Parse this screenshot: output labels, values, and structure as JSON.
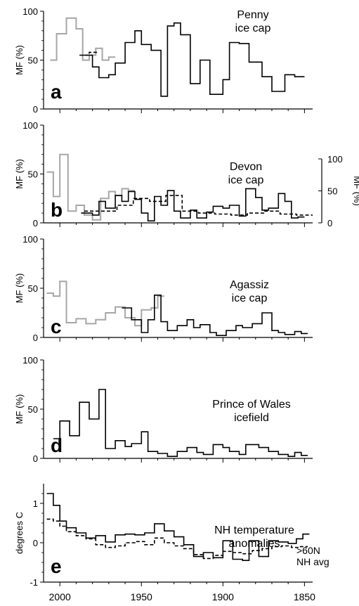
{
  "x_axis": {
    "ticks": [
      "2000",
      "1950",
      "1900",
      "1850"
    ]
  },
  "chart_data": [
    {
      "type": "line",
      "panel_letter": "a",
      "title": "Penny\nice cap",
      "ylabel": "MF (%)",
      "ylim": [
        0,
        100
      ],
      "yticks": [
        "0",
        "50",
        "100"
      ],
      "xlim": [
        2010,
        1845
      ],
      "series": [
        {
          "style": "gray-solid",
          "x": [
            2006,
            2002,
            1996,
            1990,
            1986,
            1982,
            1978,
            1974,
            1970
          ],
          "y": [
            50,
            77,
            93,
            82,
            50,
            55,
            62,
            50,
            53
          ]
        },
        {
          "style": "black-dashed",
          "x": [
            1988,
            1982
          ],
          "y": [
            55,
            58
          ]
        },
        {
          "style": "black-solid",
          "x": [
            1986,
            1980,
            1976,
            1970,
            1966,
            1960,
            1954,
            1950,
            1944,
            1938,
            1934,
            1930,
            1926,
            1920,
            1914,
            1908,
            1900,
            1896,
            1890,
            1884,
            1876,
            1870,
            1862,
            1856
          ],
          "y": [
            55,
            43,
            32,
            35,
            47,
            68,
            80,
            66,
            60,
            13,
            85,
            88,
            76,
            26,
            50,
            15,
            30,
            68,
            67,
            48,
            33,
            18,
            35,
            33
          ]
        }
      ]
    },
    {
      "type": "line",
      "panel_letter": "b",
      "title": "Devon\nice cap",
      "ylabel": "MF (%)",
      "ylim": [
        0,
        100
      ],
      "yticks": [
        "0",
        "50",
        "100"
      ],
      "y2label": "MF (%)",
      "y2ticks": [
        "0",
        "50",
        "100"
      ],
      "xlim": [
        2010,
        1845
      ],
      "series": [
        {
          "style": "gray-solid",
          "x": [
            2008,
            2004,
            2000,
            1995,
            1990,
            1985,
            1980,
            1975,
            1970,
            1966,
            1962,
            1958
          ],
          "y": [
            52,
            27,
            70,
            12,
            18,
            8,
            3,
            25,
            32,
            28,
            35,
            33
          ]
        },
        {
          "style": "black-dashed",
          "x": [
            1985,
            1975,
            1965,
            1955,
            1945,
            1935,
            1925,
            1915,
            1905,
            1895,
            1885,
            1875,
            1865,
            1855
          ],
          "y": [
            12,
            12,
            18,
            25,
            22,
            28,
            12,
            10,
            9,
            8,
            10,
            12,
            9,
            8
          ]
        },
        {
          "style": "black-solid",
          "x": [
            1987,
            1980,
            1976,
            1972,
            1966,
            1962,
            1958,
            1954,
            1950,
            1946,
            1942,
            1938,
            1934,
            1930,
            1926,
            1920,
            1916,
            1910,
            1906,
            1900,
            1896,
            1890,
            1886,
            1880,
            1876,
            1872,
            1866,
            1862,
            1858,
            1854
          ],
          "y": [
            10,
            8,
            22,
            15,
            28,
            22,
            32,
            24,
            10,
            2,
            27,
            18,
            33,
            12,
            5,
            13,
            5,
            11,
            17,
            15,
            18,
            7,
            35,
            26,
            13,
            15,
            30,
            22,
            5,
            6
          ]
        }
      ]
    },
    {
      "type": "line",
      "panel_letter": "c",
      "title": "Agassiz\nice cap",
      "ylabel": "MF (%)",
      "ylim": [
        0,
        100
      ],
      "yticks": [
        "0",
        "50",
        "100"
      ],
      "xlim": [
        2010,
        1845
      ],
      "series": [
        {
          "style": "gray-solid",
          "x": [
            2008,
            2004,
            2000,
            1996,
            1990,
            1984,
            1978,
            1972,
            1966,
            1960,
            1954,
            1950,
            1944,
            1940
          ],
          "y": [
            45,
            42,
            57,
            15,
            19,
            14,
            18,
            25,
            31,
            20,
            12,
            28,
            30,
            42
          ]
        },
        {
          "style": "black-solid",
          "x": [
            1962,
            1956,
            1950,
            1946,
            1942,
            1938,
            1934,
            1928,
            1922,
            1918,
            1914,
            1908,
            1904,
            1898,
            1892,
            1888,
            1882,
            1876,
            1870,
            1866,
            1862,
            1856,
            1852
          ],
          "y": [
            30,
            18,
            5,
            18,
            43,
            16,
            7,
            12,
            18,
            10,
            13,
            5,
            2,
            7,
            12,
            10,
            14,
            25,
            7,
            5,
            3,
            6,
            4
          ]
        }
      ]
    },
    {
      "type": "line",
      "panel_letter": "d",
      "title": "Prince of Wales\nicefield",
      "ylabel": "MF (%)",
      "ylim": [
        0,
        100
      ],
      "yticks": [
        "0",
        "50",
        "100"
      ],
      "xlim": [
        2010,
        1845
      ],
      "series": [
        {
          "style": "black-solid",
          "x": [
            2004,
            2000,
            1994,
            1988,
            1982,
            1976,
            1972,
            1966,
            1960,
            1956,
            1950,
            1946,
            1940,
            1934,
            1928,
            1922,
            1916,
            1912,
            1906,
            1900,
            1896,
            1890,
            1886,
            1878,
            1872,
            1866,
            1860,
            1856,
            1852
          ],
          "y": [
            20,
            38,
            23,
            57,
            40,
            70,
            10,
            18,
            12,
            15,
            27,
            7,
            5,
            2,
            7,
            11,
            6,
            4,
            14,
            11,
            7,
            4,
            14,
            11,
            7,
            4,
            2,
            6,
            3
          ]
        }
      ]
    },
    {
      "type": "line",
      "panel_letter": "e",
      "title": "NH temperature\nanomalies",
      "ylabel": "degrees C",
      "ylim": [
        -1,
        1.5
      ],
      "yticks": [
        "-1",
        "0",
        "1"
      ],
      "xlim": [
        2010,
        1845
      ],
      "series": [
        {
          "name": ">60N",
          "style": "black-solid",
          "x": [
            2008,
            2004,
            2000,
            1996,
            1990,
            1984,
            1978,
            1972,
            1966,
            1960,
            1954,
            1948,
            1942,
            1936,
            1930,
            1924,
            1918,
            1912,
            1906,
            1900,
            1894,
            1888,
            1884,
            1878,
            1872,
            1866,
            1860,
            1855,
            1851
          ],
          "y": [
            1.25,
            0.95,
            0.55,
            0.38,
            0.25,
            0.12,
            0.18,
            0.02,
            0.2,
            0.22,
            0.2,
            0.25,
            0.48,
            0.3,
            0.15,
            -0.05,
            -0.35,
            -0.25,
            -0.38,
            0.05,
            -0.42,
            -0.45,
            0.05,
            -0.35,
            0.05,
            0.02,
            -0.02,
            0.1,
            0.22
          ]
        },
        {
          "name": "NH avg",
          "style": "black-dashed",
          "x": [
            2008,
            2004,
            2000,
            1996,
            1990,
            1984,
            1978,
            1972,
            1966,
            1960,
            1954,
            1948,
            1942,
            1936,
            1930,
            1924,
            1918,
            1912,
            1906,
            1900,
            1894,
            1888,
            1882,
            1876,
            1870,
            1864,
            1858,
            1853
          ],
          "y": [
            0.6,
            0.55,
            0.42,
            0.28,
            0.18,
            0.1,
            -0.05,
            -0.12,
            -0.08,
            0.0,
            0.03,
            -0.05,
            0.12,
            0.0,
            -0.08,
            -0.15,
            -0.3,
            -0.4,
            -0.32,
            -0.22,
            -0.25,
            -0.28,
            -0.2,
            -0.15,
            -0.1,
            -0.08,
            -0.12,
            -0.1
          ]
        }
      ]
    }
  ]
}
